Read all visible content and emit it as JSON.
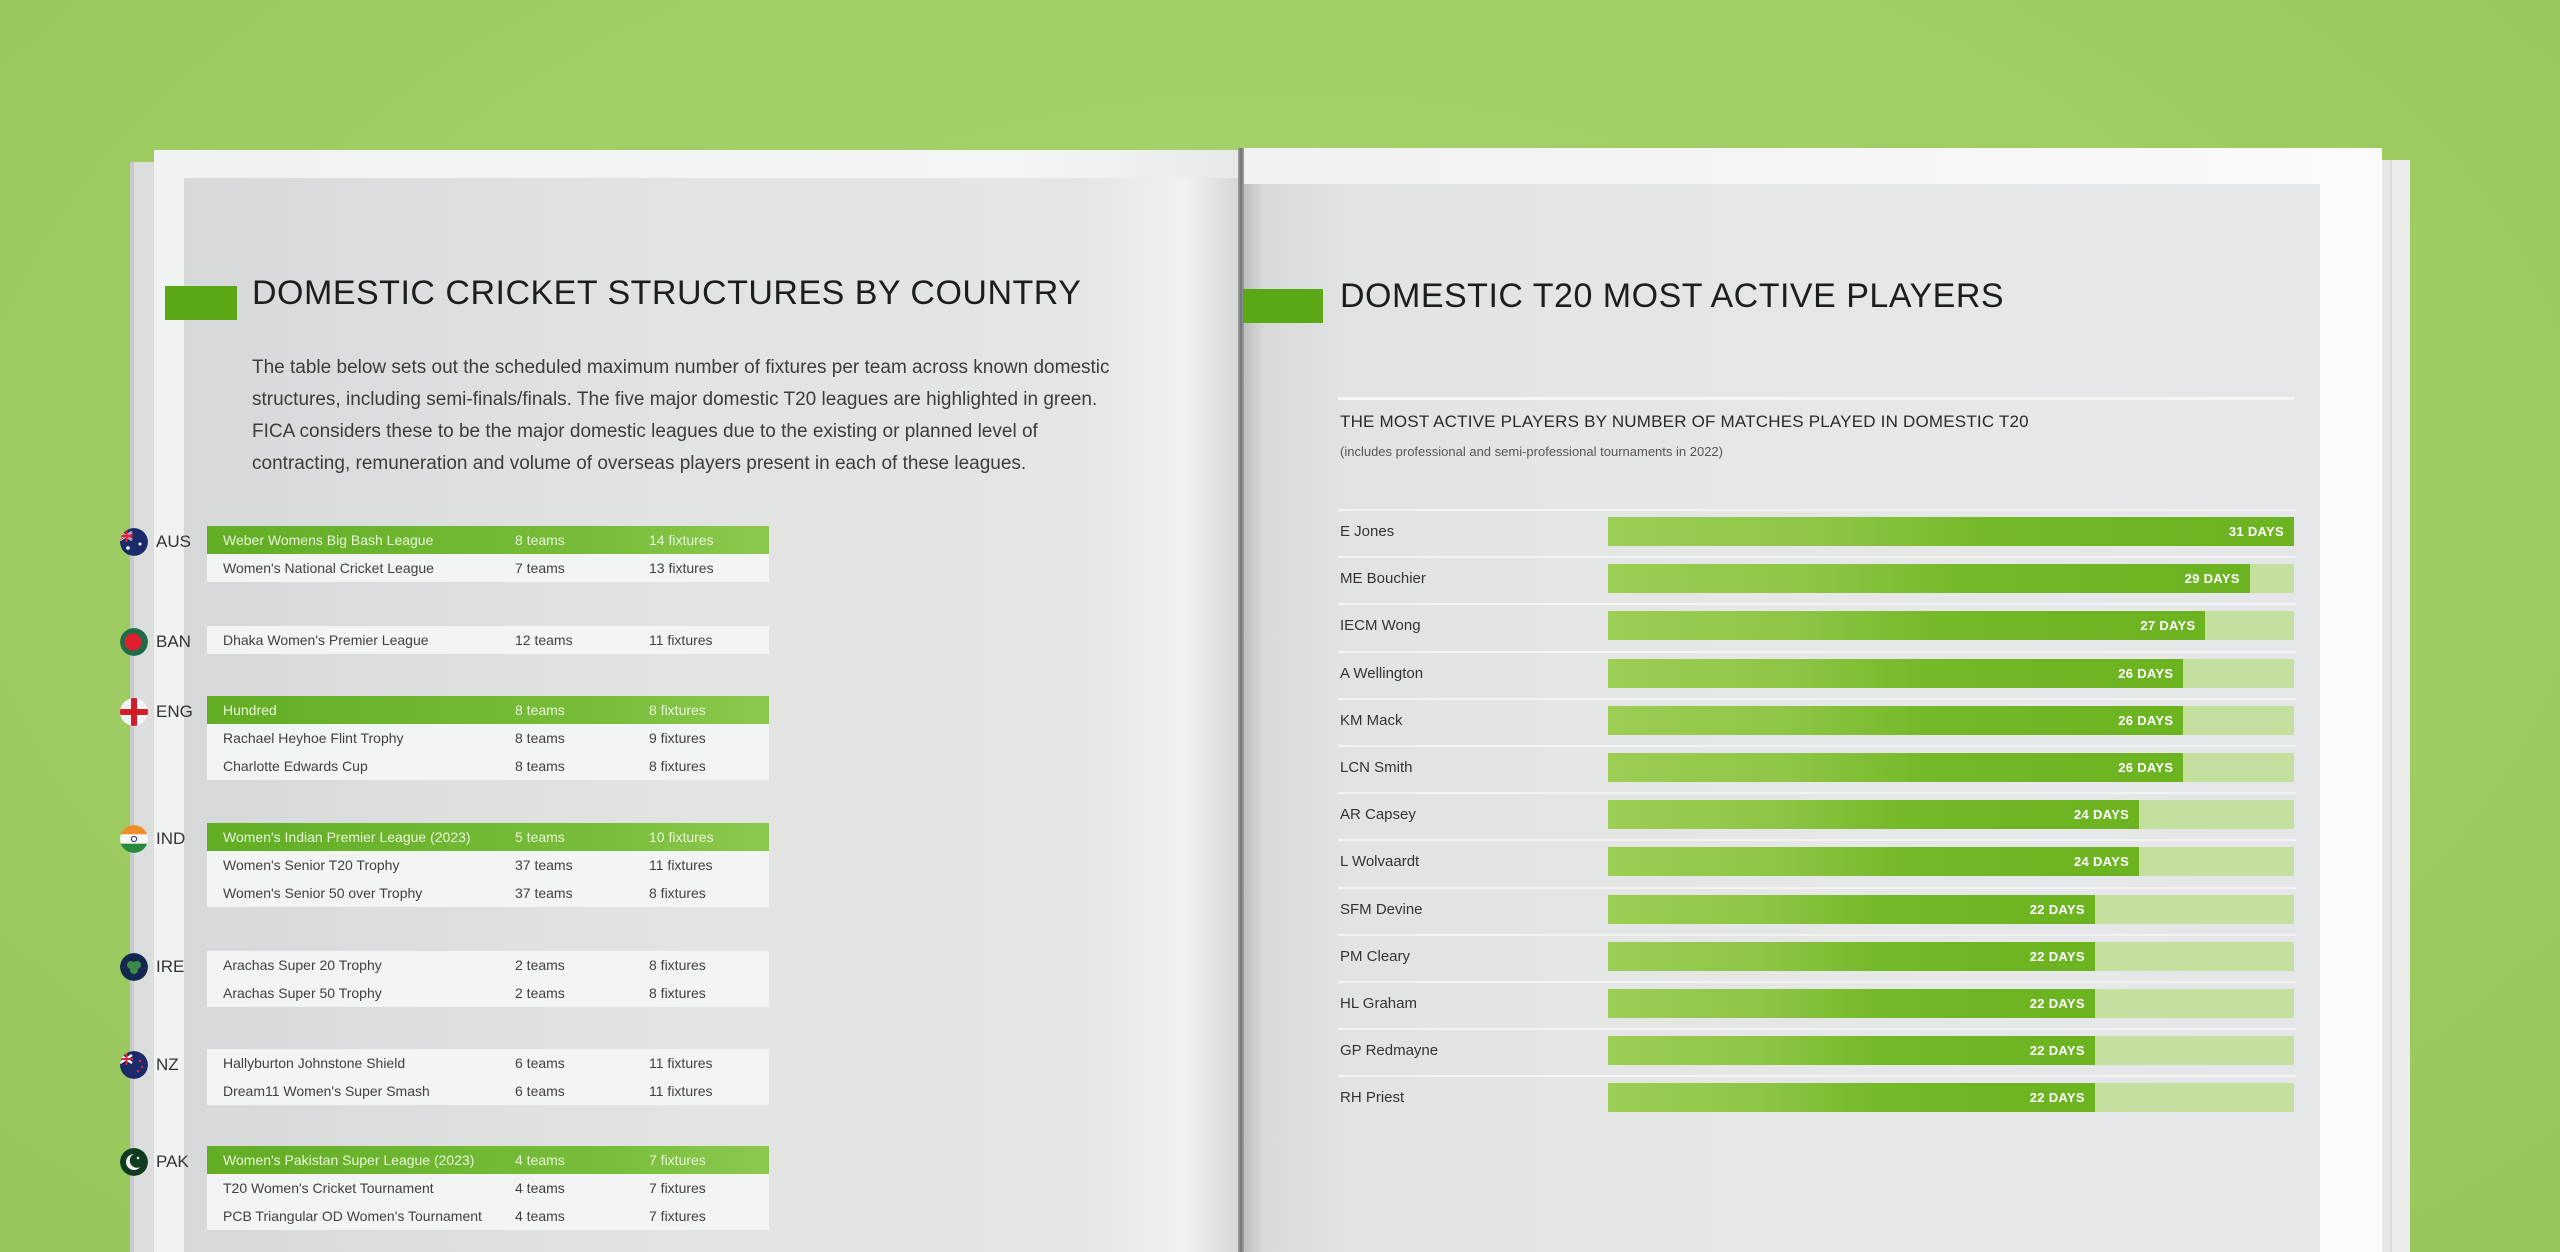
{
  "background_color": "#a3cf68",
  "accent_color": "#5ba816",
  "left_page": {
    "title": "DOMESTIC CRICKET STRUCTURES BY COUNTRY",
    "intro": "The table below sets out the scheduled maximum number of fixtures per team across known domestic structures, including semi-finals/finals. The five major domestic T20 leagues are highlighted in green. FICA considers these to be the major domestic leagues due to the existing or planned level of contracting, remuneration and volume of overseas players present in each of these leagues.",
    "countries": [
      {
        "code": "AUS",
        "flag": "australia-flag",
        "leagues": [
          {
            "name": "Weber Womens Big Bash League",
            "teams": "8 teams",
            "fixtures": "14 fixtures",
            "highlighted": true
          },
          {
            "name": "Women's National Cricket League",
            "teams": "7 teams",
            "fixtures": "13 fixtures",
            "highlighted": false
          }
        ]
      },
      {
        "code": "BAN",
        "flag": "bangladesh-flag",
        "leagues": [
          {
            "name": "Dhaka Women's Premier League",
            "teams": "12 teams",
            "fixtures": "11 fixtures",
            "highlighted": false
          }
        ]
      },
      {
        "code": "ENG",
        "flag": "england-flag",
        "leagues": [
          {
            "name": "Hundred",
            "teams": "8 teams",
            "fixtures": "8 fixtures",
            "highlighted": true
          },
          {
            "name": "Rachael Heyhoe Flint Trophy",
            "teams": "8 teams",
            "fixtures": "9 fixtures",
            "highlighted": false
          },
          {
            "name": "Charlotte Edwards Cup",
            "teams": "8 teams",
            "fixtures": "8 fixtures",
            "highlighted": false
          }
        ]
      },
      {
        "code": "IND",
        "flag": "india-flag",
        "leagues": [
          {
            "name": "Women's Indian Premier League (2023)",
            "teams": "5 teams",
            "fixtures": "10 fixtures",
            "highlighted": true
          },
          {
            "name": "Women's Senior T20 Trophy",
            "teams": "37 teams",
            "fixtures": "11 fixtures",
            "highlighted": false
          },
          {
            "name": "Women's Senior 50 over Trophy",
            "teams": "37 teams",
            "fixtures": "8 fixtures",
            "highlighted": false
          }
        ]
      },
      {
        "code": "IRE",
        "flag": "ireland-cricket-flag",
        "leagues": [
          {
            "name": "Arachas Super 20 Trophy",
            "teams": "2 teams",
            "fixtures": "8 fixtures",
            "highlighted": false
          },
          {
            "name": "Arachas Super 50 Trophy",
            "teams": "2 teams",
            "fixtures": "8 fixtures",
            "highlighted": false
          }
        ]
      },
      {
        "code": "NZ",
        "flag": "new-zealand-flag",
        "leagues": [
          {
            "name": "Hallyburton Johnstone Shield",
            "teams": "6 teams",
            "fixtures": "11 fixtures",
            "highlighted": false
          },
          {
            "name": "Dream11 Women's Super Smash",
            "teams": "6 teams",
            "fixtures": "11 fixtures",
            "highlighted": false
          }
        ]
      },
      {
        "code": "PAK",
        "flag": "pakistan-flag",
        "leagues": [
          {
            "name": "Women's Pakistan Super League (2023)",
            "teams": "4 teams",
            "fixtures": "7 fixtures",
            "highlighted": true
          },
          {
            "name": "T20 Women's Cricket Tournament",
            "teams": "4 teams",
            "fixtures": "7 fixtures",
            "highlighted": false
          },
          {
            "name": "PCB Triangular OD Women's Tournament",
            "teams": "4 teams",
            "fixtures": "7 fixtures",
            "highlighted": false
          }
        ]
      }
    ]
  },
  "right_page": {
    "title": "DOMESTIC T20 MOST ACTIVE PLAYERS",
    "chart_title": "THE MOST ACTIVE PLAYERS BY NUMBER OF MATCHES PLAYED IN DOMESTIC T20",
    "chart_note": "(includes professional and semi-professional tournaments in 2022)",
    "players": [
      {
        "name": "E Jones",
        "days": 31,
        "label": "31 DAYS"
      },
      {
        "name": "ME Bouchier",
        "days": 29,
        "label": "29 DAYS"
      },
      {
        "name": "IECM Wong",
        "days": 27,
        "label": "27 DAYS"
      },
      {
        "name": "A Wellington",
        "days": 26,
        "label": "26 DAYS"
      },
      {
        "name": "KM Mack",
        "days": 26,
        "label": "26 DAYS"
      },
      {
        "name": "LCN Smith",
        "days": 26,
        "label": "26 DAYS"
      },
      {
        "name": "AR Capsey",
        "days": 24,
        "label": "24 DAYS"
      },
      {
        "name": "L Wolvaardt",
        "days": 24,
        "label": "24 DAYS"
      },
      {
        "name": "SFM Devine",
        "days": 22,
        "label": "22 DAYS"
      },
      {
        "name": "PM Cleary",
        "days": 22,
        "label": "22 DAYS"
      },
      {
        "name": "HL Graham",
        "days": 22,
        "label": "22 DAYS"
      },
      {
        "name": "GP Redmayne",
        "days": 22,
        "label": "22 DAYS"
      },
      {
        "name": "RH Priest",
        "days": 22,
        "label": "22 DAYS"
      }
    ],
    "max_days": 31
  },
  "chart_data": {
    "type": "bar",
    "orientation": "horizontal",
    "title": "THE MOST ACTIVE PLAYERS BY NUMBER OF MATCHES PLAYED IN DOMESTIC T20",
    "subtitle": "(includes professional and semi-professional tournaments in 2022)",
    "categories": [
      "E Jones",
      "ME Bouchier",
      "IECM Wong",
      "A Wellington",
      "KM Mack",
      "LCN Smith",
      "AR Capsey",
      "L Wolvaardt",
      "SFM Devine",
      "PM Cleary",
      "HL Graham",
      "GP Redmayne",
      "RH Priest"
    ],
    "values": [
      31,
      29,
      27,
      26,
      26,
      26,
      24,
      24,
      22,
      22,
      22,
      22,
      22
    ],
    "unit": "DAYS",
    "xlim": [
      0,
      31
    ],
    "grid": false,
    "legend": "none"
  }
}
